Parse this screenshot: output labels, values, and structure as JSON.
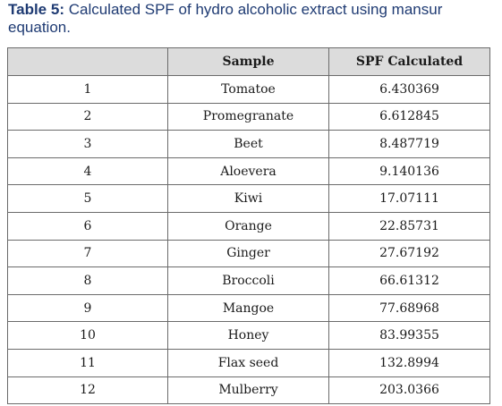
{
  "caption": {
    "label": "Table 5:",
    "text": " Calculated SPF of hydro alcoholic extract using mansur equation."
  },
  "table": {
    "headers": [
      "",
      "Sample",
      "SPF Calculated"
    ],
    "rows": [
      [
        "1",
        "Tomatoe",
        "6.430369"
      ],
      [
        "2",
        "Promegranate",
        "6.612845"
      ],
      [
        "3",
        "Beet",
        "8.487719"
      ],
      [
        "4",
        "Aloevera",
        "9.140136"
      ],
      [
        "5",
        "Kiwi",
        "17.07111"
      ],
      [
        "6",
        "Orange",
        "22.85731"
      ],
      [
        "7",
        "Ginger",
        "27.67192"
      ],
      [
        "8",
        "Broccoli",
        "66.61312"
      ],
      [
        "9",
        "Mangoe",
        "77.68968"
      ],
      [
        "10",
        "Honey",
        "83.99355"
      ],
      [
        "11",
        "Flax seed",
        "132.8994"
      ],
      [
        "12",
        "Mulberry",
        "203.0366"
      ]
    ]
  }
}
